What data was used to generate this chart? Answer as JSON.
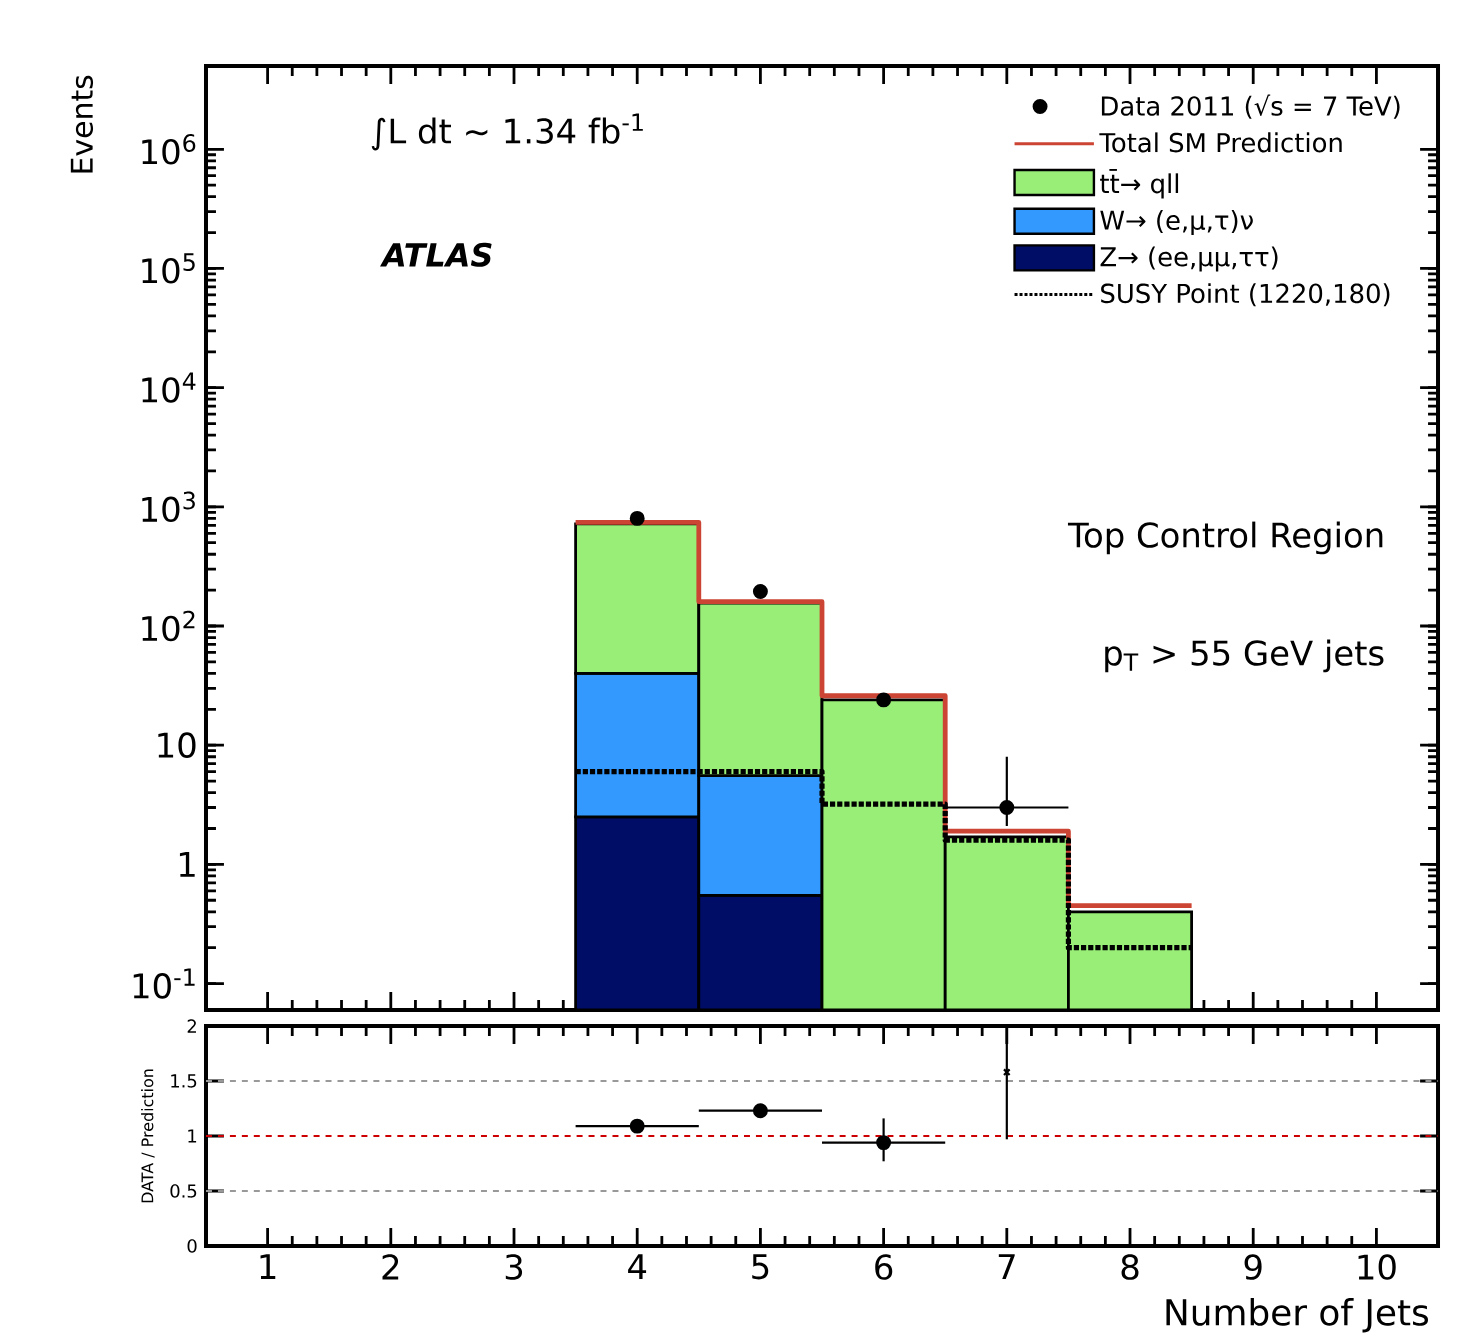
{
  "chart_data": [
    {
      "type": "bar",
      "stacked": true,
      "ylabel": "Events",
      "log": "y",
      "legend": "top right",
      "tick_labels": "y",
      "xlim": [
        0.5,
        10.5
      ],
      "xticks": [
        1,
        2,
        3,
        4,
        5,
        6,
        7,
        8,
        9,
        10
      ],
      "ylim": [
        0.06,
        5000000
      ],
      "yticks": [
        {
          "value": 0.1,
          "label": "10$^{-1}$"
        },
        {
          "value": 1,
          "label": "1"
        },
        {
          "value": 10,
          "label": "10"
        },
        {
          "value": 100,
          "label": "10$^{2}$"
        },
        {
          "value": 1000,
          "label": "10$^{3}$"
        },
        {
          "value": 10000,
          "label": "10$^{4}$"
        },
        {
          "value": 100000,
          "label": "10$^{5}$"
        },
        {
          "value": 1000000,
          "label": "10$^{6}$"
        }
      ],
      "annotations": [
        "∫L dt ~ 1.34 fb$^{-1}$",
        "ATLAS",
        "Top Control Region",
        "p$_{T}$ > 55 GeV jets"
      ],
      "x": [
        4,
        5,
        6,
        7,
        8
      ],
      "series": [
        {
          "name": "Z→ (ee,μμ,ττ)",
          "color": "#000d66",
          "values": [
            2.5,
            0.55,
            null,
            null,
            null
          ]
        },
        {
          "name": "W→ (e,μ,τ)ν",
          "color": "#3399ff",
          "values": [
            37.5,
            5,
            null,
            null,
            null
          ]
        },
        {
          "name": "tt̄→ qll",
          "color": "#99ee77",
          "values": [
            680,
            150,
            24,
            1.7,
            0.4
          ]
        },
        {
          "name": "Total SM Prediction",
          "type": "step",
          "color": "#cc4433",
          "x": [
            3.5,
            4.5,
            5.5,
            6.5,
            7.5,
            8.5
          ],
          "values": [
            740,
            160,
            26,
            1.9,
            0.45,
            0.45
          ]
        },
        {
          "name": "SUSY Point (1220,180)",
          "type": "step",
          "color": "#000000",
          "line_style": "dotted",
          "x": [
            3.5,
            4.5,
            5.5,
            6.5,
            7.5,
            8.5
          ],
          "values": [
            6,
            6,
            3.2,
            1.6,
            0.2,
            0.2
          ]
        },
        {
          "name": "Data 2011 (√s = 7 TeV)",
          "type": "scatter",
          "marker": "circle",
          "color": "#000000",
          "x": [
            4,
            5,
            6,
            7
          ],
          "values": [
            800,
            195,
            24,
            3
          ],
          "errors": [
            null,
            null,
            null,
            [
              2.1,
              8
            ]
          ],
          "xerrors": [
            null,
            null,
            null,
            0.5
          ]
        }
      ]
    },
    {
      "type": "scatter",
      "xlabel": "Number of Jets",
      "ylabel": "DATA / Prediction",
      "xlim": [
        0.5,
        10.5
      ],
      "xticks": [
        1,
        2,
        3,
        4,
        5,
        6,
        7,
        8,
        9,
        10
      ],
      "ylim": [
        0,
        2
      ],
      "yticks": [
        0,
        0.5,
        1,
        1.5,
        2
      ],
      "ref_lines": [
        {
          "axis": "y",
          "value": 1,
          "color": "#cc0000",
          "line_style": "dashed"
        },
        {
          "axis": "y",
          "value": 0.5,
          "color": "#999999",
          "line_style": "dashed"
        },
        {
          "axis": "y",
          "value": 1.5,
          "color": "#999999",
          "line_style": "dashed"
        }
      ],
      "series": [
        {
          "color": "#000000",
          "marker": "circle",
          "x": [
            4,
            5,
            6
          ],
          "values": [
            1.09,
            1.23,
            0.94
          ],
          "errors": [
            null,
            null,
            [
              0.77,
              1.16
            ]
          ],
          "xerrors": [
            0.5,
            0.5,
            0.5
          ]
        },
        {
          "color": "#000000",
          "marker": "cross",
          "x": [
            7
          ],
          "values": [
            1.58
          ],
          "errors": [
            [
              0.97,
              2
            ]
          ]
        }
      ]
    }
  ]
}
